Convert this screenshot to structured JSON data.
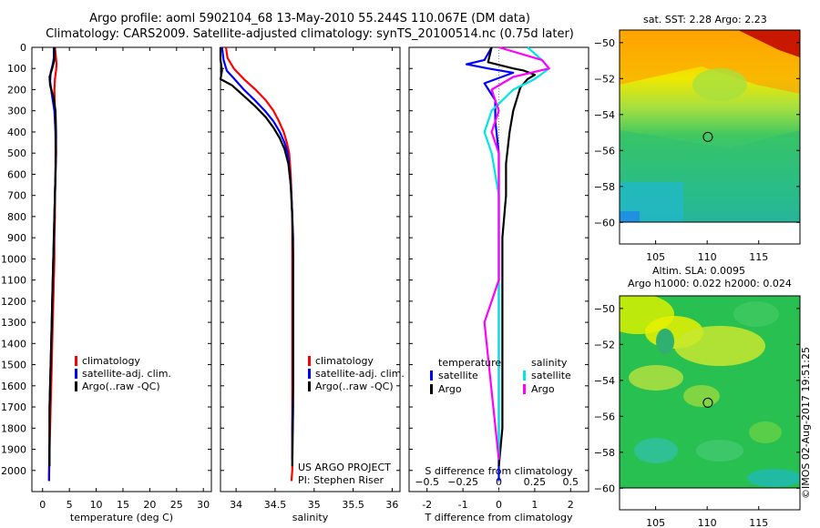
{
  "title_line1": "Argo profile: aoml 5902104_68 13-May-2010 55.244S 110.067E (DM data)",
  "title_line2": "Climatology: CARS2009. Satellite-adjusted climatology: synTS_20100514.nc (0.75d later)",
  "credit": "US ARGO PROJECT",
  "pi": "PI: Stephen Riser",
  "sst_title": "sat. SST: 2.28 Argo: 2.23",
  "sla_title1": "Altim. SLA: 0.0095",
  "sla_title2": "Argo h1000: 0.022 h2000: 0.024",
  "imos_stamp": "©IMOS 02-Aug-2017 19:51:25",
  "legend_t": [
    {
      "label": "climatology",
      "color": "#ff0000"
    },
    {
      "label": "satellite-adj. clim.",
      "color": "#0000ff"
    },
    {
      "label": "Argo(..raw -QC)",
      "color": "#000000"
    }
  ],
  "legend_s": [
    {
      "label": "climatology",
      "color": "#ff0000"
    },
    {
      "label": "satellite-adj. clim.",
      "color": "#0000ff"
    },
    {
      "label": "Argo(..raw -QC)",
      "color": "#000000"
    }
  ],
  "legend_diff": {
    "temperature_header": "temperature",
    "salinity_header": "salinity",
    "rows": [
      {
        "t_label": "satellite",
        "t_color": "#0000ff",
        "s_label": "satellite",
        "s_color": "#00e5e5"
      },
      {
        "t_label": "Argo",
        "t_color": "#000000",
        "s_label": "Argo",
        "s_color": "#ff00ff"
      }
    ]
  },
  "colors": {
    "climatology": "#ff0000",
    "satellite": "#0000ff",
    "argo": "#000000",
    "sal_sat": "#00e5e5",
    "sal_argo": "#ff00ff"
  },
  "chart_data": [
    {
      "type": "line",
      "id": "temperature",
      "xlabel": "temperature (deg C)",
      "ylabel": "",
      "xlim": [
        -2,
        31.5
      ],
      "ylim": [
        2100,
        0
      ],
      "xticks": [
        0,
        5,
        10,
        15,
        20,
        25,
        30
      ],
      "yticks": [
        0,
        100,
        200,
        300,
        400,
        500,
        600,
        700,
        800,
        900,
        1000,
        1100,
        1200,
        1300,
        1400,
        1500,
        1600,
        1700,
        1800,
        1900,
        2000
      ],
      "series": [
        {
          "key": "climatology",
          "x": [
            2.3,
            2.5,
            2.6,
            2.5,
            2.3,
            2.2,
            2.3,
            2.4,
            2.4,
            2.4,
            2.3,
            2.3,
            2.2,
            2.2,
            2.1,
            2.0,
            1.9,
            1.8,
            1.7,
            1.6,
            1.5,
            1.4,
            1.3,
            1.2
          ],
          "y": [
            0,
            50,
            80,
            110,
            150,
            200,
            300,
            400,
            500,
            600,
            700,
            800,
            900,
            1000,
            1100,
            1200,
            1300,
            1400,
            1500,
            1600,
            1700,
            1800,
            1900,
            2050
          ]
        },
        {
          "key": "satellite",
          "x": [
            2.1,
            2.1,
            1.9,
            1.5,
            1.4,
            1.7,
            2.2,
            2.4,
            2.5,
            2.4,
            2.3,
            2.2,
            2.1,
            2.0,
            1.9,
            1.8,
            1.7,
            1.6,
            1.5,
            1.4,
            1.3,
            1.3,
            1.2
          ],
          "y": [
            0,
            50,
            80,
            120,
            160,
            220,
            300,
            400,
            500,
            600,
            700,
            800,
            900,
            1000,
            1100,
            1200,
            1300,
            1400,
            1500,
            1600,
            1700,
            1800,
            2050
          ]
        },
        {
          "key": "argo",
          "x": [
            2.2,
            2.2,
            1.8,
            1.3,
            1.4,
            2.0,
            2.4,
            2.5,
            2.5,
            2.4,
            2.3,
            2.2,
            2.1,
            2.0,
            1.9,
            1.8,
            1.7,
            1.6,
            1.5,
            1.4,
            1.3,
            1.3
          ],
          "y": [
            0,
            60,
            100,
            140,
            180,
            230,
            300,
            400,
            500,
            600,
            700,
            800,
            900,
            1000,
            1100,
            1200,
            1300,
            1400,
            1500,
            1600,
            1700,
            1980
          ]
        }
      ]
    },
    {
      "type": "line",
      "id": "salinity",
      "xlabel": "salinity",
      "ylabel": "",
      "xlim": [
        33.8,
        36.1
      ],
      "ylim": [
        2100,
        0
      ],
      "xticks": [
        34,
        34.5,
        35,
        35.5,
        36
      ],
      "xticklabels": [
        "34",
        "34.5",
        "35",
        "35.5",
        "36"
      ],
      "series": [
        {
          "key": "climatology",
          "x": [
            33.87,
            33.89,
            33.97,
            34.1,
            34.25,
            34.38,
            34.48,
            34.55,
            34.61,
            34.65,
            34.68,
            34.7,
            34.71,
            34.72,
            34.72,
            34.72,
            34.72,
            34.72,
            34.72,
            34.72,
            34.72,
            34.72,
            34.71
          ],
          "y": [
            0,
            50,
            100,
            150,
            200,
            250,
            300,
            350,
            400,
            450,
            500,
            600,
            700,
            800,
            900,
            1000,
            1200,
            1400,
            1600,
            1800,
            1900,
            2000,
            2050
          ]
        },
        {
          "key": "satellite",
          "x": [
            33.82,
            33.84,
            33.88,
            33.98,
            34.1,
            34.24,
            34.37,
            34.48,
            34.56,
            34.62,
            34.66,
            34.69,
            34.71,
            34.72,
            34.73,
            34.73,
            34.73,
            34.73,
            34.73,
            34.72,
            34.72
          ],
          "y": [
            0,
            60,
            110,
            150,
            200,
            250,
            300,
            350,
            400,
            450,
            500,
            600,
            700,
            800,
            900,
            1000,
            1200,
            1400,
            1600,
            1800,
            1950
          ]
        },
        {
          "key": "argo",
          "x": [
            33.8,
            33.8,
            33.82,
            33.8,
            33.95,
            34.1,
            34.25,
            34.38,
            34.48,
            34.56,
            34.62,
            34.67,
            34.7,
            34.72,
            34.73,
            34.73,
            34.73,
            34.73,
            34.73,
            34.72
          ],
          "y": [
            0,
            60,
            110,
            150,
            180,
            230,
            280,
            330,
            380,
            430,
            480,
            550,
            650,
            800,
            1000,
            1100,
            1300,
            1500,
            1700,
            1980
          ]
        }
      ]
    },
    {
      "type": "line",
      "id": "difference",
      "xlabel": "T difference from climatology",
      "xlabel_top": "S difference from climatology",
      "xlim": [
        -2.5,
        2.5
      ],
      "ylim": [
        2100,
        0
      ],
      "xticks": [
        -2,
        -1,
        0,
        1,
        2
      ],
      "top_ticks": [
        -0.5,
        -0.25,
        0,
        0.25,
        0.5
      ],
      "top_ticklabels": [
        "−0.5",
        "−0.25",
        "0",
        "0.25",
        "0.5"
      ],
      "series": [
        {
          "key": "t_satellite",
          "x": [
            -0.2,
            -0.4,
            -0.9,
            -0.3,
            0.4,
            -0.4,
            -0.1,
            -0.1,
            0.0,
            0.0,
            0.0,
            0.0,
            0.0,
            0.0,
            0.0,
            0.0,
            0.0,
            0.0
          ],
          "y": [
            0,
            60,
            80,
            100,
            120,
            170,
            250,
            350,
            500,
            700,
            900,
            1100,
            1300,
            1500,
            1700,
            1800,
            1900,
            2050
          ]
        },
        {
          "key": "t_argo",
          "x": [
            -0.2,
            -0.3,
            0.4,
            0.7,
            1.0,
            0.8,
            0.6,
            0.4,
            0.3,
            0.2,
            0.2,
            0.1,
            0.1,
            0.1,
            0.1,
            0.1,
            0.0
          ],
          "y": [
            0,
            70,
            100,
            110,
            130,
            150,
            190,
            300,
            400,
            550,
            700,
            900,
            1100,
            1400,
            1600,
            1800,
            1980
          ]
        },
        {
          "key": "s_satellite",
          "x": [
            0.2,
            0.3,
            0.35,
            0.25,
            0.1,
            -0.05,
            -0.1,
            -0.05,
            0.0,
            0.0,
            0.0,
            0.0,
            0.0,
            0.0,
            0.0
          ],
          "y": [
            0,
            60,
            100,
            150,
            200,
            300,
            400,
            500,
            700,
            900,
            1100,
            1300,
            1500,
            1700,
            1950
          ]
        },
        {
          "key": "s_argo",
          "x": [
            0.0,
            0.3,
            0.35,
            0.1,
            -0.05,
            0.0,
            -0.05,
            0.0,
            0.0,
            0.0,
            0.0,
            -0.1,
            0.0
          ],
          "y": [
            0,
            60,
            100,
            140,
            200,
            300,
            400,
            500,
            700,
            900,
            1100,
            1300,
            1950
          ]
        }
      ]
    },
    {
      "type": "heatmap",
      "id": "sst_map",
      "title": "sat. SST: 2.28 Argo: 2.23",
      "xlim": [
        101.5,
        119
      ],
      "ylim": [
        -61.2,
        -49.3
      ],
      "xticks": [
        105,
        110,
        115
      ],
      "yticks": [
        -50,
        -52,
        -54,
        -56,
        -58,
        -60
      ],
      "marker": {
        "lon": 110.067,
        "lat": -55.244
      }
    },
    {
      "type": "heatmap",
      "id": "sla_map",
      "title": "Altim. SLA: 0.0095",
      "xlim": [
        101.5,
        119
      ],
      "ylim": [
        -61.2,
        -49.3
      ],
      "xticks": [
        105,
        110,
        115
      ],
      "yticks": [
        -50,
        -52,
        -54,
        -56,
        -58,
        -60
      ],
      "marker": {
        "lon": 110.067,
        "lat": -55.244
      }
    }
  ]
}
